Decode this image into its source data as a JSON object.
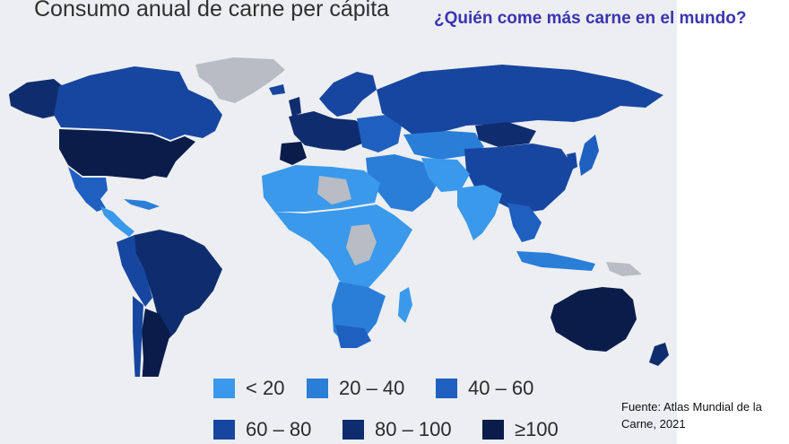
{
  "map": {
    "title": "Consumo anual de carne per cápita",
    "colors": {
      "lt20": "#3a99ea",
      "c20_40": "#2a7ed8",
      "c40_60": "#1f5fc0",
      "c60_80": "#1746a0",
      "c80_100": "#0f2d6e",
      "gte100": "#0a1c4a",
      "no_data": "#b8bcc4",
      "background": "#eceef1"
    },
    "legend": [
      {
        "label": "< 20",
        "color": "#3a99ea"
      },
      {
        "label": "20 – 40",
        "color": "#2a7ed8"
      },
      {
        "label": "40 – 60",
        "color": "#1f5fc0"
      },
      {
        "label": "60 – 80",
        "color": "#1746a0"
      },
      {
        "label": "80 – 100",
        "color": "#0f2d6e"
      },
      {
        "label": "≥100",
        "color": "#0a1c4a"
      }
    ]
  },
  "headline": "¿Quién come más carne en el mundo?",
  "source": "Fuente: Atlas Mundial de la Carne, 2021"
}
